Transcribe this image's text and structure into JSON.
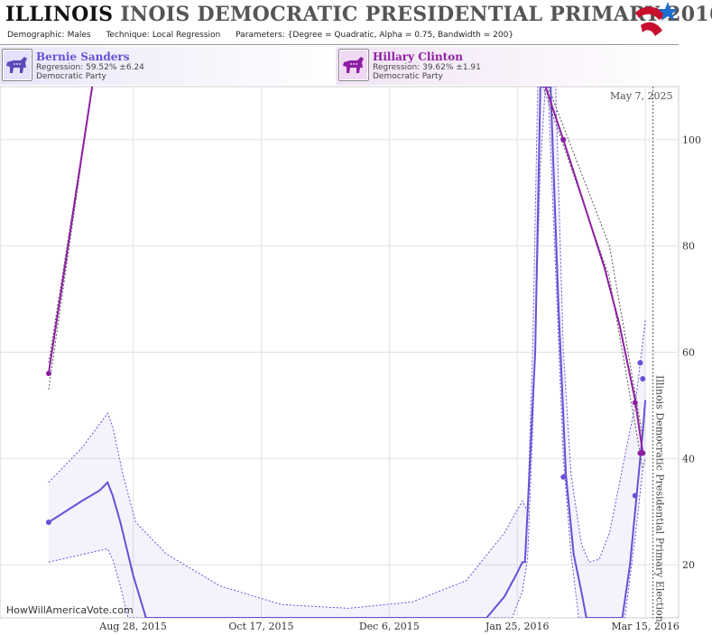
{
  "header": {
    "title_state": "ILLINOIS",
    "title_rest": "INOIS DEMOCRATIC PRESIDENTIAL PRIMARY 2016",
    "params": [
      {
        "key": "Demographic:",
        "value": "Males"
      },
      {
        "key": "Technique:",
        "value": "Local Regression"
      },
      {
        "key": "Parameters:",
        "value": "{Degree = Quadratic, Alpha = 0.75, Bandwidth = 200}"
      }
    ]
  },
  "candidates": [
    {
      "name": "Bernie Sanders",
      "regression": "Regression: 59.52% ±6.24",
      "party": "Democratic Party",
      "color": "#6a4fd6"
    },
    {
      "name": "Hillary Clinton",
      "regression": "Regression: 39.62% ±1.91",
      "party": "Democratic Party",
      "color": "#8e1fa3"
    }
  ],
  "date_label": "May 7, 2025",
  "watermark": "HowWillAmericaVote.com",
  "election_label": "Illinois Democratic Presidential Primary Election",
  "chart_data": {
    "type": "line",
    "x_ticks": [
      "Aug 28, 2015",
      "Oct 17, 2015",
      "Dec 6, 2015",
      "Jan 25, 2016",
      "Mar 15, 2016"
    ],
    "y_ticks": [
      20,
      40,
      60,
      80,
      100
    ],
    "ylim": [
      10,
      110
    ],
    "xlim": [
      "2015-07-07",
      "2016-03-28"
    ],
    "election_date": "2016-03-18",
    "series": [
      {
        "name": "Bernie Sanders",
        "color": "#6a4fd6",
        "line": [
          [
            "2015-07-26",
            28
          ],
          [
            "2015-08-08",
            32
          ],
          [
            "2015-08-15",
            34
          ],
          [
            "2015-08-18",
            35.5
          ],
          [
            "2015-08-20",
            33
          ],
          [
            "2015-08-23",
            28
          ],
          [
            "2015-08-28",
            18
          ],
          [
            "2015-09-02",
            10
          ],
          [
            "2016-01-13",
            10
          ],
          [
            "2016-01-20",
            14
          ],
          [
            "2016-01-25",
            18.5
          ],
          [
            "2016-01-27",
            20.5
          ],
          [
            "2016-01-28",
            20.5
          ],
          [
            "2016-01-29",
            30
          ],
          [
            "2016-02-01",
            60
          ],
          [
            "2016-02-03",
            110
          ],
          [
            "2016-02-07",
            110
          ],
          [
            "2016-02-10",
            70
          ],
          [
            "2016-02-13",
            37
          ],
          [
            "2016-02-16",
            22
          ],
          [
            "2016-02-19",
            15
          ],
          [
            "2016-02-21",
            10
          ],
          [
            "2016-03-06",
            10
          ],
          [
            "2016-03-09",
            20
          ],
          [
            "2016-03-12",
            35
          ],
          [
            "2016-03-14",
            45
          ],
          [
            "2016-03-15",
            51
          ]
        ],
        "upper": [
          [
            "2015-07-26",
            35.5
          ],
          [
            "2015-08-08",
            42
          ],
          [
            "2015-08-18",
            48.5
          ],
          [
            "2015-08-20",
            46
          ],
          [
            "2015-08-24",
            37
          ],
          [
            "2015-08-29",
            28
          ],
          [
            "2015-09-10",
            22
          ],
          [
            "2015-10-01",
            16
          ],
          [
            "2015-10-25",
            12.5
          ],
          [
            "2015-11-20",
            11.8
          ],
          [
            "2015-12-15",
            13
          ],
          [
            "2016-01-05",
            17
          ],
          [
            "2016-01-20",
            26
          ],
          [
            "2016-01-27",
            32
          ],
          [
            "2016-01-29",
            30
          ],
          [
            "2016-01-31",
            60
          ],
          [
            "2016-02-02",
            110
          ],
          [
            "2016-02-09",
            110
          ],
          [
            "2016-02-12",
            60
          ],
          [
            "2016-02-15",
            37
          ],
          [
            "2016-02-19",
            24
          ],
          [
            "2016-02-22",
            20.5
          ],
          [
            "2016-02-26",
            21
          ],
          [
            "2016-03-01",
            26
          ],
          [
            "2016-03-06",
            38
          ],
          [
            "2016-03-11",
            50
          ],
          [
            "2016-03-15",
            66
          ]
        ],
        "lower": [
          [
            "2015-07-26",
            20.5
          ],
          [
            "2015-08-18",
            23
          ],
          [
            "2015-08-20",
            21
          ],
          [
            "2015-08-23",
            16
          ],
          [
            "2015-08-26",
            10
          ],
          [
            "2016-01-23",
            10
          ],
          [
            "2016-01-27",
            15
          ],
          [
            "2016-01-29",
            21
          ],
          [
            "2016-01-31",
            45
          ],
          [
            "2016-02-03",
            95
          ],
          [
            "2016-02-05",
            110
          ],
          [
            "2016-02-06",
            110
          ],
          [
            "2016-02-09",
            75
          ],
          [
            "2016-02-12",
            40
          ],
          [
            "2016-02-15",
            22
          ],
          [
            "2016-02-18",
            10
          ],
          [
            "2016-03-07",
            10
          ],
          [
            "2016-03-11",
            25
          ],
          [
            "2016-03-14",
            38
          ],
          [
            "2016-03-15",
            40
          ]
        ],
        "points": [
          [
            "2015-07-26",
            28
          ],
          [
            "2016-02-12",
            36.5
          ],
          [
            "2016-03-11",
            33
          ],
          [
            "2016-03-13",
            58
          ],
          [
            "2016-03-14",
            55
          ]
        ]
      },
      {
        "name": "Hillary Clinton",
        "color": "#8e1fa3",
        "line": [
          [
            "2015-07-26",
            56
          ],
          [
            "2015-08-12",
            110
          ]
        ],
        "line2": [
          [
            "2016-02-05",
            110
          ],
          [
            "2016-02-12",
            100
          ],
          [
            "2016-02-20",
            88
          ],
          [
            "2016-02-28",
            76
          ],
          [
            "2016-03-05",
            65
          ],
          [
            "2016-03-11",
            51
          ],
          [
            "2016-03-14",
            41
          ]
        ],
        "upper": [
          [
            "2015-07-26",
            58
          ],
          [
            "2015-08-12",
            110
          ]
        ],
        "upper2": [
          [
            "2016-02-06",
            110
          ],
          [
            "2016-03-00",
            80
          ],
          [
            "2016-03-14",
            44
          ]
        ],
        "lower": [
          [
            "2015-07-26",
            53
          ],
          [
            "2015-08-12",
            110
          ]
        ],
        "lower2": [
          [
            "2016-02-04",
            110
          ],
          [
            "2016-03-00",
            74
          ],
          [
            "2016-03-14",
            38
          ]
        ],
        "points": [
          [
            "2015-07-26",
            56
          ],
          [
            "2016-02-12",
            100
          ],
          [
            "2016-03-11",
            50.5
          ],
          [
            "2016-03-13",
            41
          ],
          [
            "2016-03-14",
            41
          ]
        ]
      }
    ],
    "grid": true
  }
}
